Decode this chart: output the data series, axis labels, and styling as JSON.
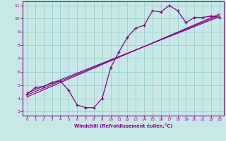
{
  "title": "",
  "xlabel": "Windchill (Refroidissement éolien,°C)",
  "ylabel": "",
  "bg_color": "#c8e8e8",
  "grid_color": "#99cccc",
  "line_color": "#880088",
  "xlim": [
    -0.5,
    23.5
  ],
  "ylim": [
    2.7,
    11.3
  ],
  "x_ticks": [
    0,
    1,
    2,
    3,
    4,
    5,
    6,
    7,
    8,
    9,
    10,
    11,
    12,
    13,
    14,
    15,
    16,
    17,
    18,
    19,
    20,
    21,
    22,
    23
  ],
  "y_ticks": [
    3,
    4,
    5,
    6,
    7,
    8,
    9,
    10,
    11
  ],
  "curve_x": [
    0,
    1,
    2,
    3,
    4,
    5,
    6,
    7,
    8,
    9,
    10,
    11,
    12,
    13,
    14,
    15,
    16,
    17,
    18,
    19,
    20,
    21,
    22,
    23
  ],
  "curve_y": [
    4.3,
    4.8,
    4.9,
    5.2,
    5.3,
    4.6,
    3.5,
    3.3,
    3.3,
    4.0,
    6.3,
    7.5,
    8.6,
    9.3,
    9.5,
    10.6,
    10.5,
    11.0,
    10.6,
    9.7,
    10.1,
    10.1,
    10.2,
    10.1
  ],
  "line1_x": [
    0,
    23
  ],
  "line1_y": [
    4.4,
    10.15
  ],
  "line2_x": [
    0,
    23
  ],
  "line2_y": [
    4.25,
    10.25
  ],
  "line3_x": [
    0,
    23
  ],
  "line3_y": [
    4.1,
    10.35
  ]
}
